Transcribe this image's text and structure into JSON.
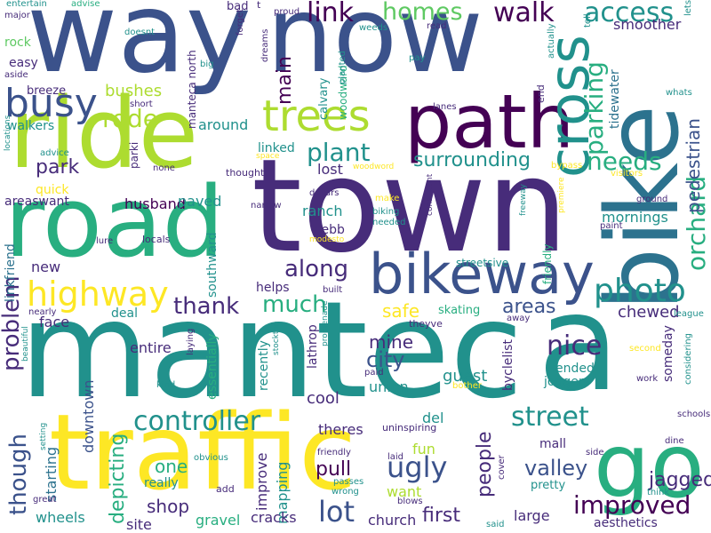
{
  "palette": {
    "dark_purple": "#440154",
    "indigo": "#472c7a",
    "blue": "#3b528b",
    "steel": "#2c728e",
    "teal": "#21918c",
    "green_teal": "#28ae80",
    "green": "#5ec962",
    "lime": "#addc30",
    "yellow": "#fde725"
  },
  "words": [
    {
      "text": "mantec"
    },
    {
      "text": "a"
    },
    {
      "text": "town"
    },
    {
      "text": "way"
    },
    {
      "text": "now"
    },
    {
      "text": "road"
    },
    {
      "text": "traffic"
    },
    {
      "text": "bike"
    },
    {
      "text": "ride"
    },
    {
      "text": "path"
    },
    {
      "text": "go"
    },
    {
      "text": "cross"
    },
    {
      "text": "bikeway"
    },
    {
      "text": "busy"
    },
    {
      "text": "trees"
    },
    {
      "text": "highway"
    },
    {
      "text": "photo"
    },
    {
      "text": "controller"
    },
    {
      "text": "link"
    },
    {
      "text": "walk"
    },
    {
      "text": "homes"
    },
    {
      "text": "access"
    },
    {
      "text": "plant"
    },
    {
      "text": "rode"
    },
    {
      "text": "parking"
    },
    {
      "text": "orchard"
    },
    {
      "text": "needs"
    },
    {
      "text": "main"
    },
    {
      "text": "surrounding"
    },
    {
      "text": "park"
    },
    {
      "text": "along"
    },
    {
      "text": "much"
    },
    {
      "text": "thank"
    },
    {
      "text": "problem"
    },
    {
      "text": "though"
    },
    {
      "text": "nice"
    },
    {
      "text": "street"
    },
    {
      "text": "lot"
    },
    {
      "text": "improved"
    },
    {
      "text": "ugly"
    },
    {
      "text": "city"
    },
    {
      "text": "valley"
    },
    {
      "text": "areas"
    },
    {
      "text": "pedestrian"
    },
    {
      "text": "safe"
    },
    {
      "text": "people"
    },
    {
      "text": "depicting"
    },
    {
      "text": "shop"
    },
    {
      "text": "pull"
    },
    {
      "text": "jagged"
    },
    {
      "text": "chewed"
    },
    {
      "text": "first"
    },
    {
      "text": "mine"
    },
    {
      "text": "guest"
    },
    {
      "text": "cool"
    },
    {
      "text": "one"
    },
    {
      "text": "starting"
    },
    {
      "text": "downtown"
    },
    {
      "text": "improve"
    },
    {
      "text": "mapping"
    },
    {
      "text": "bushes"
    },
    {
      "text": "smoother"
    },
    {
      "text": "tidewater"
    },
    {
      "text": "ranch"
    },
    {
      "text": "lost"
    },
    {
      "text": "around"
    },
    {
      "text": "husband"
    },
    {
      "text": "paved"
    },
    {
      "text": "mornings"
    },
    {
      "text": "linked"
    },
    {
      "text": "southward"
    },
    {
      "text": "recently"
    },
    {
      "text": "lathrop"
    },
    {
      "text": "essentially"
    },
    {
      "text": "entire"
    },
    {
      "text": "face"
    },
    {
      "text": "new"
    },
    {
      "text": "helps"
    },
    {
      "text": "union"
    },
    {
      "text": "theres"
    },
    {
      "text": "del"
    },
    {
      "text": "fun"
    },
    {
      "text": "want"
    },
    {
      "text": "large"
    },
    {
      "text": "mall"
    },
    {
      "text": "someday"
    },
    {
      "text": "ended"
    },
    {
      "text": "joggers"
    },
    {
      "text": "byclelist"
    },
    {
      "text": "pretty"
    },
    {
      "text": "church"
    },
    {
      "text": "cracks"
    },
    {
      "text": "gravel"
    },
    {
      "text": "site"
    },
    {
      "text": "wheels"
    },
    {
      "text": "really"
    },
    {
      "text": "deal"
    },
    {
      "text": "walkers"
    },
    {
      "text": "breeze"
    },
    {
      "text": "rock"
    },
    {
      "text": "easy"
    },
    {
      "text": "manteca north"
    },
    {
      "text": "calvary"
    },
    {
      "text": "woodward"
    },
    {
      "text": "quick"
    },
    {
      "text": "areaswant"
    },
    {
      "text": "linkfriend"
    },
    {
      "text": "webb"
    },
    {
      "text": "friendly"
    },
    {
      "text": "skating"
    },
    {
      "text": "streetsive"
    },
    {
      "text": "theyve"
    },
    {
      "text": "aesthetics"
    },
    {
      "text": "parki"
    },
    {
      "text": "end"
    },
    {
      "text": "bad"
    },
    {
      "text": "t"
    },
    {
      "text": "proud"
    },
    {
      "text": "entertain"
    },
    {
      "text": "advise"
    },
    {
      "text": "major"
    },
    {
      "text": "doesnt"
    },
    {
      "text": "forget"
    },
    {
      "text": "weeds"
    },
    {
      "text": "read"
    },
    {
      "text": "tell"
    },
    {
      "text": "lets"
    },
    {
      "text": "big"
    },
    {
      "text": "pay"
    },
    {
      "text": "aside"
    },
    {
      "text": "dreams"
    },
    {
      "text": "actually"
    },
    {
      "text": "whats"
    },
    {
      "text": "planted"
    },
    {
      "text": "lanes"
    },
    {
      "text": "short"
    },
    {
      "text": "advice"
    },
    {
      "text": "none"
    },
    {
      "text": "space"
    },
    {
      "text": "woodword"
    },
    {
      "text": "bypass"
    },
    {
      "text": "locations"
    },
    {
      "text": "thought"
    },
    {
      "text": "visitors"
    },
    {
      "text": "dollars"
    },
    {
      "text": "ground"
    },
    {
      "text": "narrow"
    },
    {
      "text": "make"
    },
    {
      "text": "biking"
    },
    {
      "text": "needed"
    },
    {
      "text": "freeway"
    },
    {
      "text": "premiere"
    },
    {
      "text": "paint"
    },
    {
      "text": "consultant"
    },
    {
      "text": "locals"
    },
    {
      "text": "lure"
    },
    {
      "text": "modesto"
    },
    {
      "text": "built"
    },
    {
      "text": "nearly"
    },
    {
      "text": "away"
    },
    {
      "text": "league"
    },
    {
      "text": "second"
    },
    {
      "text": "work"
    },
    {
      "text": "considering"
    },
    {
      "text": "kind"
    },
    {
      "text": "laying"
    },
    {
      "text": "beautiful"
    },
    {
      "text": "promenade"
    },
    {
      "text": "stockton"
    },
    {
      "text": "paid"
    },
    {
      "text": "bother"
    },
    {
      "text": "schools"
    },
    {
      "text": "dine"
    },
    {
      "text": "uninspiring"
    },
    {
      "text": "obvious"
    },
    {
      "text": "setting"
    },
    {
      "text": "friendly"
    },
    {
      "text": "laid"
    },
    {
      "text": "side"
    },
    {
      "text": "cover"
    },
    {
      "text": "think"
    },
    {
      "text": "passes"
    },
    {
      "text": "wrong"
    },
    {
      "text": "add"
    },
    {
      "text": "great"
    },
    {
      "text": "blows"
    },
    {
      "text": "said"
    }
  ]
}
